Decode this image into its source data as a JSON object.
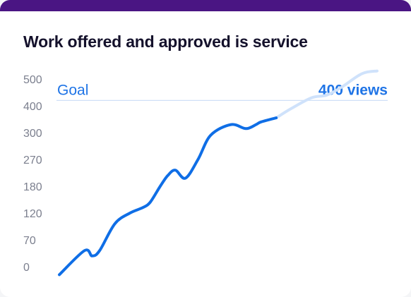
{
  "card": {
    "title": "Work offered and approved is service"
  },
  "colors": {
    "header_bar": "#4a1583",
    "line_solid": "#0f6ee6",
    "line_projected": "#cfe2fb",
    "goal_line": "#cfe0f7",
    "goal_text": "#1f74e6"
  },
  "chart_data": {
    "type": "line",
    "title": "Work offered and approved is service",
    "xlabel": "",
    "ylabel": "",
    "y_ticks": [
      "0",
      "70",
      "120",
      "180",
      "270",
      "300",
      "400",
      "500"
    ],
    "ylim": [
      0,
      7.5
    ],
    "grid": false,
    "goal": {
      "label": "Goal",
      "value_label": "400 views",
      "value_index": 6.2
    },
    "series": [
      {
        "style": "solid",
        "x": [
          0,
          1,
          1.3,
          1.6,
          2.2,
          2.8,
          3.3,
          3.6,
          4.0,
          4.3,
          4.6,
          5.0,
          5.5,
          6.0,
          6.8,
          7.4,
          7.8,
          8.0,
          8.6
        ],
        "y": [
          -0.3,
          0.6,
          0.4,
          0.6,
          1.6,
          2.0,
          2.2,
          2.4,
          3.0,
          3.4,
          3.6,
          3.3,
          4.0,
          4.9,
          5.3,
          5.15,
          5.3,
          5.4,
          5.55
        ]
      },
      {
        "style": "projected",
        "x": [
          8.6,
          9.2,
          10.0,
          10.6,
          11.2,
          12.0,
          12.6
        ],
        "y": [
          5.55,
          5.9,
          6.3,
          6.4,
          6.7,
          7.2,
          7.3
        ]
      }
    ]
  }
}
